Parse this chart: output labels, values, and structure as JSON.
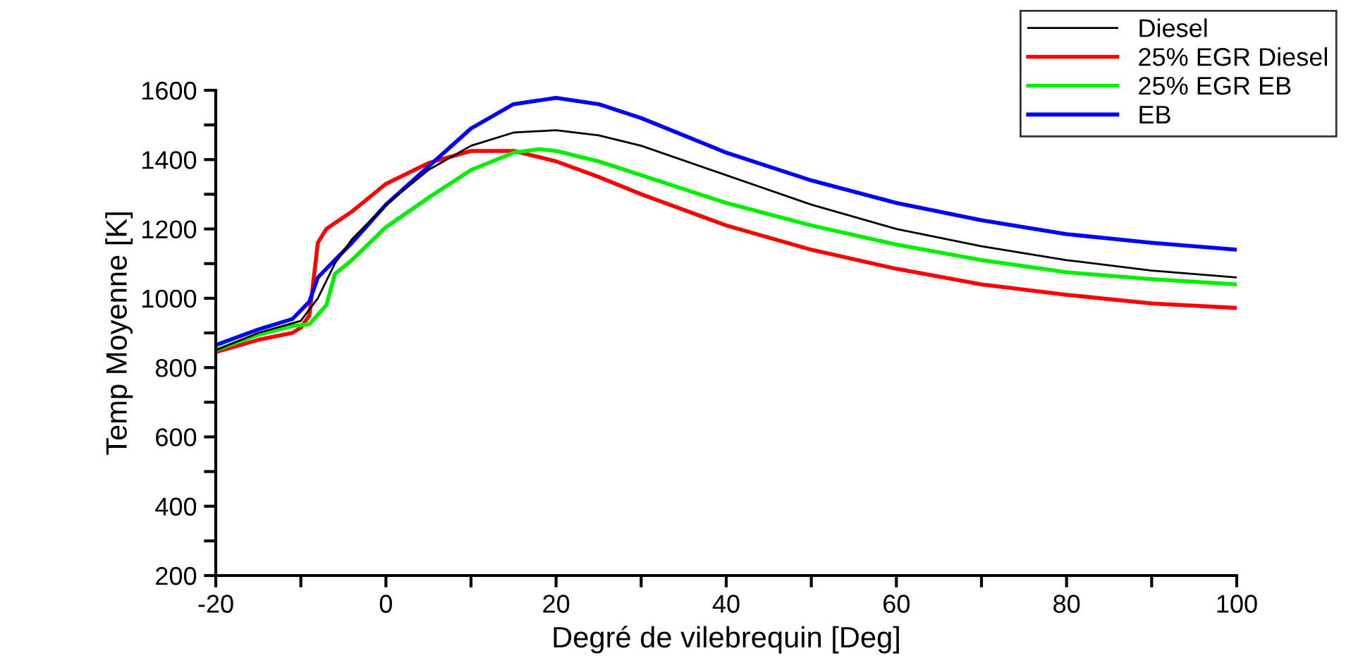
{
  "chart_data": {
    "type": "line",
    "xlabel": "Degré de vilebrequin [Deg]",
    "ylabel": "Temp Moyenne [K]",
    "xlim": [
      -20,
      100
    ],
    "ylim": [
      200,
      1600
    ],
    "xticks": [
      -20,
      {
        "value": -10,
        "label": null
      },
      0,
      {
        "value": 10,
        "label": null
      },
      20,
      {
        "value": 30,
        "label": null
      },
      40,
      {
        "value": 50,
        "label": null
      },
      60,
      {
        "value": 70,
        "label": null
      },
      80,
      {
        "value": 90,
        "label": null
      },
      100
    ],
    "yticks": [
      200,
      {
        "value": 300,
        "label": null
      },
      400,
      {
        "value": 500,
        "label": null
      },
      600,
      {
        "value": 700,
        "label": null
      },
      800,
      {
        "value": 900,
        "label": null
      },
      1000,
      {
        "value": 1100,
        "label": null
      },
      1200,
      {
        "value": 1300,
        "label": null
      },
      1400,
      {
        "value": 1500,
        "label": null
      },
      1600
    ],
    "grid": false,
    "legend": "top right",
    "line_style": "solid",
    "marker": "none",
    "series": [
      {
        "name": "Diesel",
        "color": "#000000",
        "x": [
          -20,
          -15,
          -10,
          -8,
          -6,
          -4,
          0,
          5,
          10,
          15,
          20,
          25,
          30,
          40,
          50,
          60,
          70,
          80,
          90,
          100
        ],
        "values": [
          850,
          900,
          935,
          1000,
          1100,
          1170,
          1270,
          1370,
          1440,
          1478,
          1485,
          1470,
          1440,
          1355,
          1270,
          1200,
          1150,
          1110,
          1080,
          1060
        ]
      },
      {
        "name": "25% EGR Diesel",
        "color": "#ff0000",
        "x": [
          -20,
          -15,
          -11,
          -10,
          -9,
          -8,
          -7,
          -4,
          0,
          5,
          10,
          15,
          20,
          25,
          30,
          40,
          50,
          60,
          70,
          80,
          90,
          100
        ],
        "values": [
          845,
          880,
          900,
          915,
          950,
          1160,
          1200,
          1250,
          1330,
          1390,
          1425,
          1425,
          1395,
          1350,
          1300,
          1210,
          1140,
          1085,
          1040,
          1010,
          985,
          972
        ]
      },
      {
        "name": "25% EGR EB",
        "color": "#00ee00",
        "x": [
          -20,
          -15,
          -11,
          -9,
          -7,
          -6,
          -4,
          0,
          5,
          10,
          15,
          18,
          20,
          25,
          30,
          40,
          50,
          60,
          70,
          80,
          90,
          100
        ],
        "values": [
          850,
          895,
          920,
          925,
          980,
          1070,
          1110,
          1205,
          1290,
          1370,
          1420,
          1430,
          1425,
          1395,
          1355,
          1275,
          1210,
          1155,
          1110,
          1075,
          1055,
          1040
        ]
      },
      {
        "name": "EB",
        "color": "#0000ff",
        "x": [
          -20,
          -15,
          -11,
          -9,
          -8,
          -6,
          -4,
          0,
          5,
          10,
          15,
          20,
          25,
          30,
          40,
          50,
          60,
          70,
          80,
          90,
          100
        ],
        "values": [
          865,
          910,
          940,
          990,
          1060,
          1110,
          1160,
          1270,
          1380,
          1490,
          1560,
          1578,
          1560,
          1520,
          1420,
          1340,
          1275,
          1225,
          1185,
          1160,
          1140
        ]
      }
    ]
  }
}
